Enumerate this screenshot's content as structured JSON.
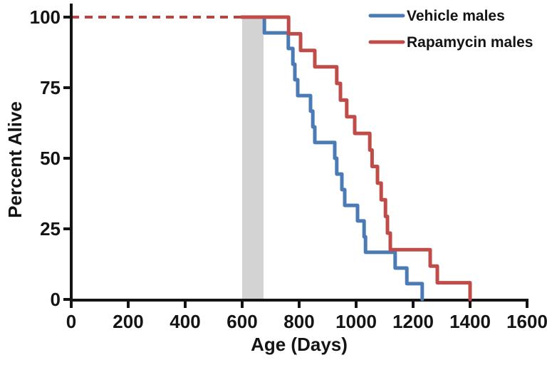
{
  "chart_data": {
    "type": "line",
    "subtype": "kaplan-meier-step-survival",
    "title": "",
    "xlabel": "Age (Days)",
    "ylabel": "Percent Alive",
    "xlim": [
      0,
      1600
    ],
    "ylim": [
      0,
      100
    ],
    "x_ticks": [
      "0",
      "200",
      "400",
      "600",
      "800",
      "1000",
      "1200",
      "1400",
      "1600"
    ],
    "x_tick_values": [
      0,
      200,
      400,
      600,
      800,
      1000,
      1200,
      1400,
      1600
    ],
    "y_ticks": [
      "0",
      "25",
      "50",
      "75",
      "100"
    ],
    "y_tick_values": [
      0,
      25,
      50,
      75,
      100
    ],
    "grid": "off",
    "legend_position": "top-right",
    "axis_color": "#141414",
    "highlight_band": {
      "x_start": 600,
      "x_end": 675,
      "color": "#d3d3d3"
    },
    "dashed_reference_line": {
      "y": 100,
      "x_start": 0,
      "x_end": 598,
      "color": "#b24643"
    },
    "series": [
      {
        "name": "Vehicle males",
        "color": "#4b7bb4",
        "start": [
          598,
          100
        ],
        "steps": [
          [
            678,
            94.4
          ],
          [
            762,
            88.9
          ],
          [
            778,
            83.3
          ],
          [
            785,
            77.8
          ],
          [
            795,
            72.2
          ],
          [
            840,
            66.7
          ],
          [
            848,
            61.1
          ],
          [
            855,
            55.6
          ],
          [
            925,
            50.0
          ],
          [
            932,
            44.4
          ],
          [
            950,
            38.9
          ],
          [
            960,
            33.3
          ],
          [
            1005,
            27.8
          ],
          [
            1028,
            22.2
          ],
          [
            1033,
            16.7
          ],
          [
            1137,
            11.1
          ],
          [
            1178,
            5.6
          ],
          [
            1232,
            0
          ]
        ]
      },
      {
        "name": "Rapamycin males",
        "color": "#bf4c49",
        "start": [
          598,
          100
        ],
        "steps": [
          [
            763,
            94.1
          ],
          [
            805,
            88.2
          ],
          [
            855,
            82.4
          ],
          [
            932,
            76.5
          ],
          [
            945,
            70.6
          ],
          [
            967,
            64.7
          ],
          [
            995,
            58.8
          ],
          [
            1048,
            52.9
          ],
          [
            1056,
            47.1
          ],
          [
            1075,
            41.2
          ],
          [
            1088,
            35.3
          ],
          [
            1103,
            29.4
          ],
          [
            1110,
            23.5
          ],
          [
            1120,
            17.6
          ],
          [
            1260,
            11.8
          ],
          [
            1285,
            5.9
          ],
          [
            1400,
            0
          ]
        ]
      }
    ]
  },
  "legend": {
    "items": [
      {
        "label": "Vehicle males"
      },
      {
        "label": "Rapamycin males"
      }
    ]
  }
}
